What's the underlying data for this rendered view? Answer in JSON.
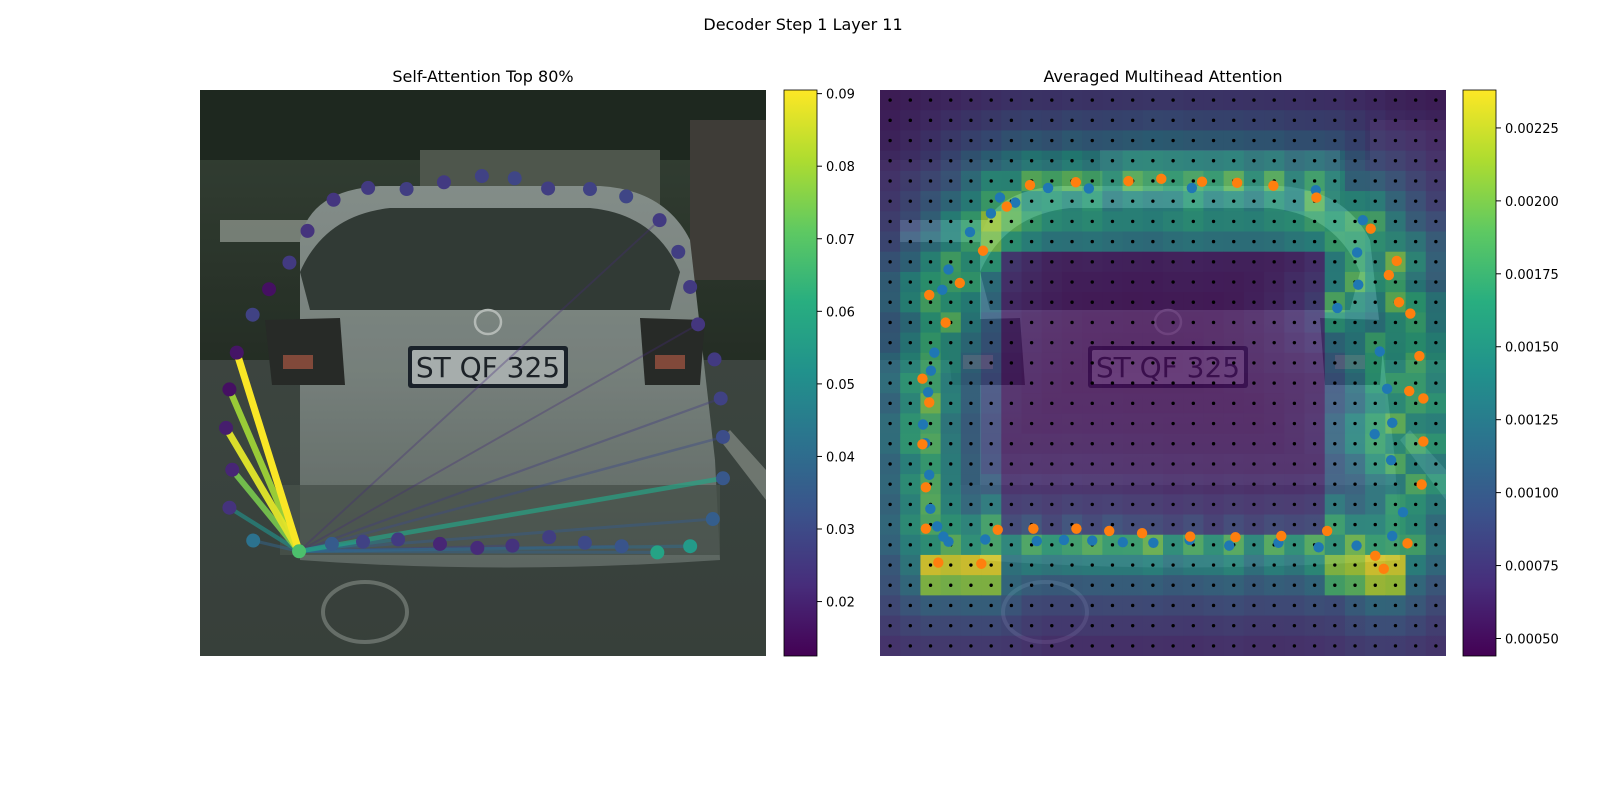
{
  "figure": {
    "suptitle": "Decoder Step 1 Layer 11"
  },
  "chart_data": [
    {
      "type": "scatter",
      "panel": "self-attention",
      "title": "Self-Attention Top 80%",
      "colormap": "viridis",
      "colorbar": {
        "range": [
          0.0125,
          0.0905
        ],
        "ticks": [
          0.02,
          0.03,
          0.04,
          0.05,
          0.06,
          0.07,
          0.08,
          0.09
        ],
        "tick_labels": [
          "0.02",
          "0.03",
          "0.04",
          "0.05",
          "0.06",
          "0.07",
          "0.08",
          "0.09"
        ]
      },
      "query_point": {
        "x": 0.175,
        "y": 0.815,
        "value": 0.068
      },
      "points": [
        {
          "x": 0.094,
          "y": 0.796,
          "value": 0.042
        },
        {
          "x": 0.052,
          "y": 0.738,
          "value": 0.024
        },
        {
          "x": 0.057,
          "y": 0.671,
          "value": 0.021
        },
        {
          "x": 0.046,
          "y": 0.597,
          "value": 0.019
        },
        {
          "x": 0.052,
          "y": 0.529,
          "value": 0.016
        },
        {
          "x": 0.065,
          "y": 0.464,
          "value": 0.017
        },
        {
          "x": 0.093,
          "y": 0.397,
          "value": 0.028
        },
        {
          "x": 0.122,
          "y": 0.352,
          "value": 0.016
        },
        {
          "x": 0.158,
          "y": 0.305,
          "value": 0.026
        },
        {
          "x": 0.19,
          "y": 0.249,
          "value": 0.024
        },
        {
          "x": 0.236,
          "y": 0.194,
          "value": 0.025
        },
        {
          "x": 0.297,
          "y": 0.173,
          "value": 0.026
        },
        {
          "x": 0.365,
          "y": 0.175,
          "value": 0.027
        },
        {
          "x": 0.431,
          "y": 0.163,
          "value": 0.026
        },
        {
          "x": 0.498,
          "y": 0.152,
          "value": 0.028
        },
        {
          "x": 0.556,
          "y": 0.156,
          "value": 0.029
        },
        {
          "x": 0.615,
          "y": 0.174,
          "value": 0.027
        },
        {
          "x": 0.689,
          "y": 0.175,
          "value": 0.028
        },
        {
          "x": 0.753,
          "y": 0.188,
          "value": 0.029
        },
        {
          "x": 0.812,
          "y": 0.23,
          "value": 0.026
        },
        {
          "x": 0.845,
          "y": 0.286,
          "value": 0.027
        },
        {
          "x": 0.866,
          "y": 0.348,
          "value": 0.026
        },
        {
          "x": 0.88,
          "y": 0.414,
          "value": 0.025
        },
        {
          "x": 0.909,
          "y": 0.476,
          "value": 0.026
        },
        {
          "x": 0.92,
          "y": 0.545,
          "value": 0.028
        },
        {
          "x": 0.924,
          "y": 0.613,
          "value": 0.031
        },
        {
          "x": 0.924,
          "y": 0.686,
          "value": 0.034
        },
        {
          "x": 0.906,
          "y": 0.758,
          "value": 0.036
        },
        {
          "x": 0.866,
          "y": 0.806,
          "value": 0.055
        },
        {
          "x": 0.808,
          "y": 0.817,
          "value": 0.058
        },
        {
          "x": 0.745,
          "y": 0.806,
          "value": 0.033
        },
        {
          "x": 0.68,
          "y": 0.8,
          "value": 0.03
        },
        {
          "x": 0.617,
          "y": 0.79,
          "value": 0.027
        },
        {
          "x": 0.552,
          "y": 0.805,
          "value": 0.024
        },
        {
          "x": 0.49,
          "y": 0.809,
          "value": 0.022
        },
        {
          "x": 0.424,
          "y": 0.802,
          "value": 0.021
        },
        {
          "x": 0.35,
          "y": 0.794,
          "value": 0.026
        },
        {
          "x": 0.288,
          "y": 0.798,
          "value": 0.028
        },
        {
          "x": 0.233,
          "y": 0.802,
          "value": 0.035
        }
      ],
      "edges": [
        {
          "to": [
            0.065,
            0.464
          ],
          "value": 0.09
        },
        {
          "to": [
            0.046,
            0.597
          ],
          "value": 0.087
        },
        {
          "to": [
            0.052,
            0.529
          ],
          "value": 0.08
        },
        {
          "to": [
            0.057,
            0.671
          ],
          "value": 0.075
        },
        {
          "to": [
            0.052,
            0.738
          ],
          "value": 0.052
        },
        {
          "to": [
            0.094,
            0.796
          ],
          "value": 0.038
        },
        {
          "to": [
            0.924,
            0.686
          ],
          "value": 0.058
        },
        {
          "to": [
            0.906,
            0.758
          ],
          "value": 0.035
        },
        {
          "to": [
            0.924,
            0.613
          ],
          "value": 0.03
        },
        {
          "to": [
            0.92,
            0.545
          ],
          "value": 0.026
        },
        {
          "to": [
            0.866,
            0.806
          ],
          "value": 0.04
        },
        {
          "to": [
            0.808,
            0.817
          ],
          "value": 0.037
        },
        {
          "to": [
            0.745,
            0.806
          ],
          "value": 0.034
        },
        {
          "to": [
            0.552,
            0.805
          ],
          "value": 0.028
        },
        {
          "to": [
            0.35,
            0.794
          ],
          "value": 0.045
        },
        {
          "to": [
            0.288,
            0.798
          ],
          "value": 0.043
        },
        {
          "to": [
            0.233,
            0.802
          ],
          "value": 0.042
        },
        {
          "to": [
            0.812,
            0.23
          ],
          "value": 0.022
        },
        {
          "to": [
            0.88,
            0.414
          ],
          "value": 0.022
        }
      ]
    },
    {
      "type": "heatmap",
      "panel": "averaged-attention",
      "title": "Averaged Multihead Attention",
      "colormap": "viridis",
      "grid_cells": 28,
      "colorbar": {
        "range": [
          0.00044,
          0.00238
        ],
        "ticks": [
          0.0005,
          0.00075,
          0.001,
          0.00125,
          0.0015,
          0.00175,
          0.002,
          0.00225
        ],
        "tick_labels": [
          "0.00050",
          "0.00075",
          "0.00100",
          "0.00125",
          "0.00150",
          "0.00175",
          "0.00200",
          "0.00225"
        ]
      },
      "series": [
        {
          "color": "#1f77b4",
          "points": [
            [
              0.239,
              0.199
            ],
            [
              0.297,
              0.173
            ],
            [
              0.369,
              0.174
            ],
            [
              0.551,
              0.173
            ],
            [
              0.77,
              0.177
            ],
            [
              0.853,
              0.23
            ],
            [
              0.843,
              0.287
            ],
            [
              0.808,
              0.385
            ],
            [
              0.845,
              0.344
            ],
            [
              0.883,
              0.462
            ],
            [
              0.896,
              0.528
            ],
            [
              0.874,
              0.608
            ],
            [
              0.903,
              0.654
            ],
            [
              0.905,
              0.588
            ],
            [
              0.924,
              0.746
            ],
            [
              0.905,
              0.788
            ],
            [
              0.842,
              0.805
            ],
            [
              0.775,
              0.808
            ],
            [
              0.704,
              0.8
            ],
            [
              0.617,
              0.805
            ],
            [
              0.547,
              0.795
            ],
            [
              0.483,
              0.8
            ],
            [
              0.429,
              0.799
            ],
            [
              0.375,
              0.796
            ],
            [
              0.325,
              0.795
            ],
            [
              0.277,
              0.797
            ],
            [
              0.186,
              0.794
            ],
            [
              0.121,
              0.798
            ],
            [
              0.112,
              0.789
            ],
            [
              0.101,
              0.771
            ],
            [
              0.089,
              0.74
            ],
            [
              0.087,
              0.68
            ],
            [
              0.08,
              0.624
            ],
            [
              0.076,
              0.591
            ],
            [
              0.085,
              0.534
            ],
            [
              0.09,
              0.496
            ],
            [
              0.096,
              0.464
            ],
            [
              0.11,
              0.353
            ],
            [
              0.121,
              0.317
            ],
            [
              0.159,
              0.251
            ],
            [
              0.196,
              0.218
            ],
            [
              0.212,
              0.19
            ]
          ]
        },
        {
          "color": "#ff7f0e",
          "points": [
            [
              0.224,
              0.206
            ],
            [
              0.265,
              0.168
            ],
            [
              0.346,
              0.163
            ],
            [
              0.439,
              0.161
            ],
            [
              0.497,
              0.157
            ],
            [
              0.569,
              0.162
            ],
            [
              0.631,
              0.164
            ],
            [
              0.695,
              0.169
            ],
            [
              0.771,
              0.19
            ],
            [
              0.867,
              0.245
            ],
            [
              0.913,
              0.302
            ],
            [
              0.899,
              0.327
            ],
            [
              0.917,
              0.375
            ],
            [
              0.937,
              0.395
            ],
            [
              0.953,
              0.47
            ],
            [
              0.935,
              0.532
            ],
            [
              0.96,
              0.545
            ],
            [
              0.96,
              0.621
            ],
            [
              0.957,
              0.697
            ],
            [
              0.932,
              0.801
            ],
            [
              0.875,
              0.823
            ],
            [
              0.89,
              0.846
            ],
            [
              0.79,
              0.779
            ],
            [
              0.709,
              0.788
            ],
            [
              0.628,
              0.79
            ],
            [
              0.548,
              0.789
            ],
            [
              0.463,
              0.783
            ],
            [
              0.405,
              0.779
            ],
            [
              0.347,
              0.775
            ],
            [
              0.271,
              0.775
            ],
            [
              0.208,
              0.777
            ],
            [
              0.179,
              0.837
            ],
            [
              0.103,
              0.835
            ],
            [
              0.081,
              0.775
            ],
            [
              0.081,
              0.702
            ],
            [
              0.075,
              0.626
            ],
            [
              0.087,
              0.552
            ],
            [
              0.075,
              0.51
            ],
            [
              0.116,
              0.411
            ],
            [
              0.087,
              0.362
            ],
            [
              0.141,
              0.341
            ],
            [
              0.182,
              0.284
            ]
          ]
        }
      ]
    }
  ]
}
